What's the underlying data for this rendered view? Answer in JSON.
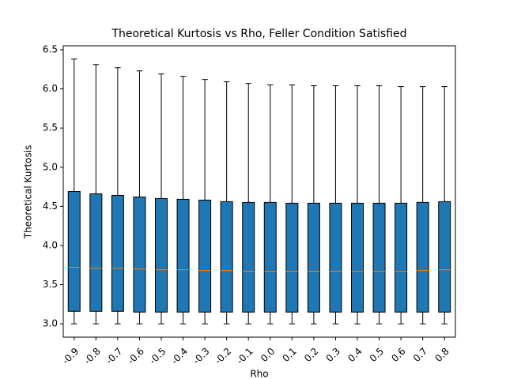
{
  "chart_data": {
    "type": "box",
    "title": "Theoretical Kurtosis vs Rho, Feller Condition Satisfied",
    "xlabel": "Rho",
    "ylabel": "Theoretical Kurtosis",
    "categories": [
      "-0.9",
      "-0.8",
      "-0.7",
      "-0.6",
      "-0.5",
      "-0.4",
      "-0.3",
      "-0.2",
      "-0.1",
      "0.0",
      "0.1",
      "0.2",
      "0.3",
      "0.4",
      "0.5",
      "0.6",
      "0.7",
      "0.8"
    ],
    "whislo": [
      3.0,
      3.0,
      3.0,
      3.0,
      3.0,
      3.0,
      3.0,
      3.0,
      3.0,
      3.0,
      3.0,
      3.0,
      3.0,
      3.0,
      3.0,
      3.0,
      3.0,
      3.0
    ],
    "q1": [
      3.16,
      3.16,
      3.16,
      3.15,
      3.15,
      3.15,
      3.15,
      3.15,
      3.15,
      3.15,
      3.15,
      3.15,
      3.15,
      3.15,
      3.15,
      3.15,
      3.15,
      3.15
    ],
    "med": [
      3.72,
      3.71,
      3.71,
      3.7,
      3.69,
      3.69,
      3.68,
      3.68,
      3.67,
      3.67,
      3.67,
      3.67,
      3.67,
      3.67,
      3.67,
      3.67,
      3.68,
      3.69
    ],
    "q3": [
      4.69,
      4.66,
      4.64,
      4.62,
      4.6,
      4.59,
      4.58,
      4.56,
      4.55,
      4.55,
      4.54,
      4.54,
      4.54,
      4.54,
      4.54,
      4.54,
      4.55,
      4.56
    ],
    "whishi": [
      6.38,
      6.31,
      6.27,
      6.23,
      6.19,
      6.16,
      6.12,
      6.09,
      6.07,
      6.05,
      6.05,
      6.04,
      6.04,
      6.04,
      6.04,
      6.03,
      6.03,
      6.03
    ],
    "box_color": "#1f77b4",
    "median_color": "#ff7f0e",
    "ylim": [
      2.83,
      6.55
    ],
    "yticks": [
      {
        "value": 3.0,
        "label": "3.0"
      },
      3.5,
      {
        "value": 4.0,
        "label": "4.0"
      },
      4.5,
      {
        "value": 5.0,
        "label": "5.0"
      },
      5.5,
      {
        "value": 6.0,
        "label": "6.0"
      },
      6.5
    ]
  }
}
